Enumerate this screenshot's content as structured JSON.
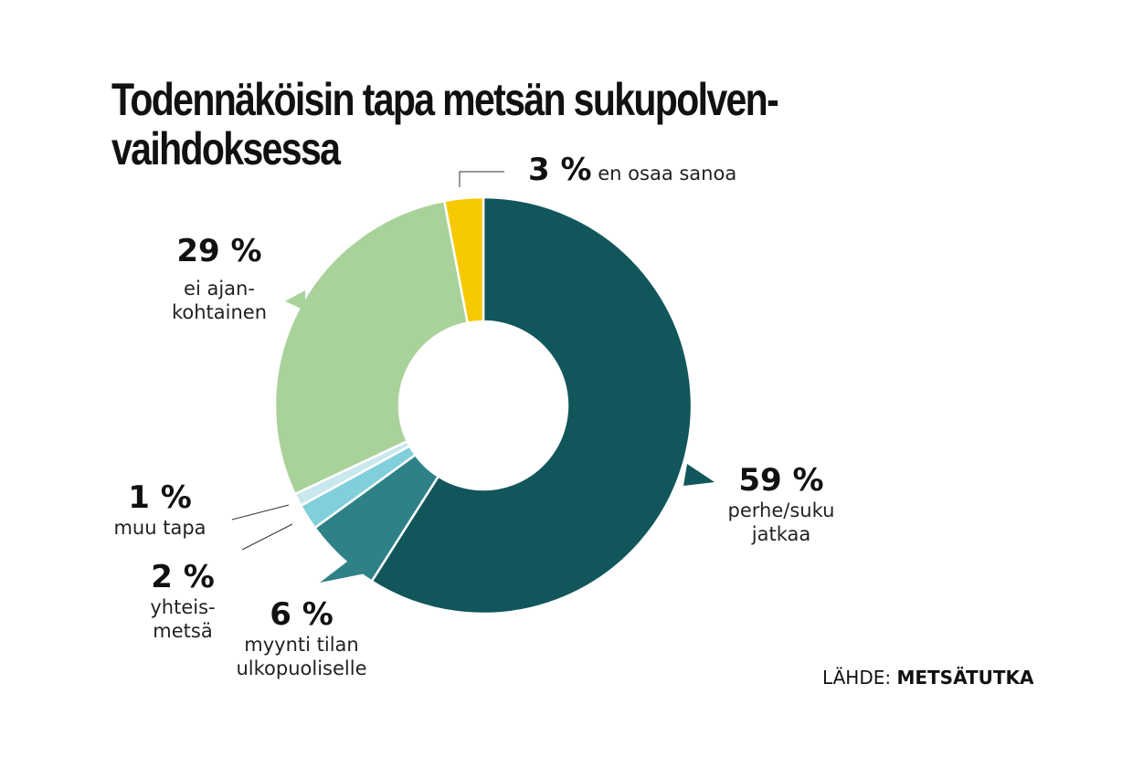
{
  "chart_data": {
    "type": "pie",
    "donut": true,
    "title": "Todennäköisin tapa metsän sukupolven-vaihdoksessa",
    "title_lines": [
      "Todennäköisin tapa metsän sukupolven-",
      "vaihdoksessa"
    ],
    "slices": [
      {
        "pct_label": "59 %",
        "value": 59,
        "label_lines": [
          "perhe/suku",
          "jatkaa"
        ],
        "color": "#11565b"
      },
      {
        "pct_label": "6 %",
        "value": 6,
        "label_lines": [
          "myynti tilan",
          "ulkopuoliselle"
        ],
        "color": "#2e8287"
      },
      {
        "pct_label": "2 %",
        "value": 2,
        "label_lines": [
          "yhteis-",
          "metsä"
        ],
        "color": "#82cfdc"
      },
      {
        "pct_label": "1 %",
        "value": 1,
        "label_lines": [
          "muu tapa"
        ],
        "color": "#c9e8ee"
      },
      {
        "pct_label": "29 %",
        "value": 29,
        "label_lines": [
          "ei ajan-",
          "kohtainen"
        ],
        "color": "#a9d29b"
      },
      {
        "pct_label": "3 %",
        "value": 3,
        "label_lines": [
          "en osaa sanoa"
        ],
        "color": "#f7c900"
      }
    ],
    "start": "top",
    "direction": "clockwise"
  },
  "source": {
    "prefix": "LÄHDE:",
    "name": "METSÄTUTKA"
  }
}
